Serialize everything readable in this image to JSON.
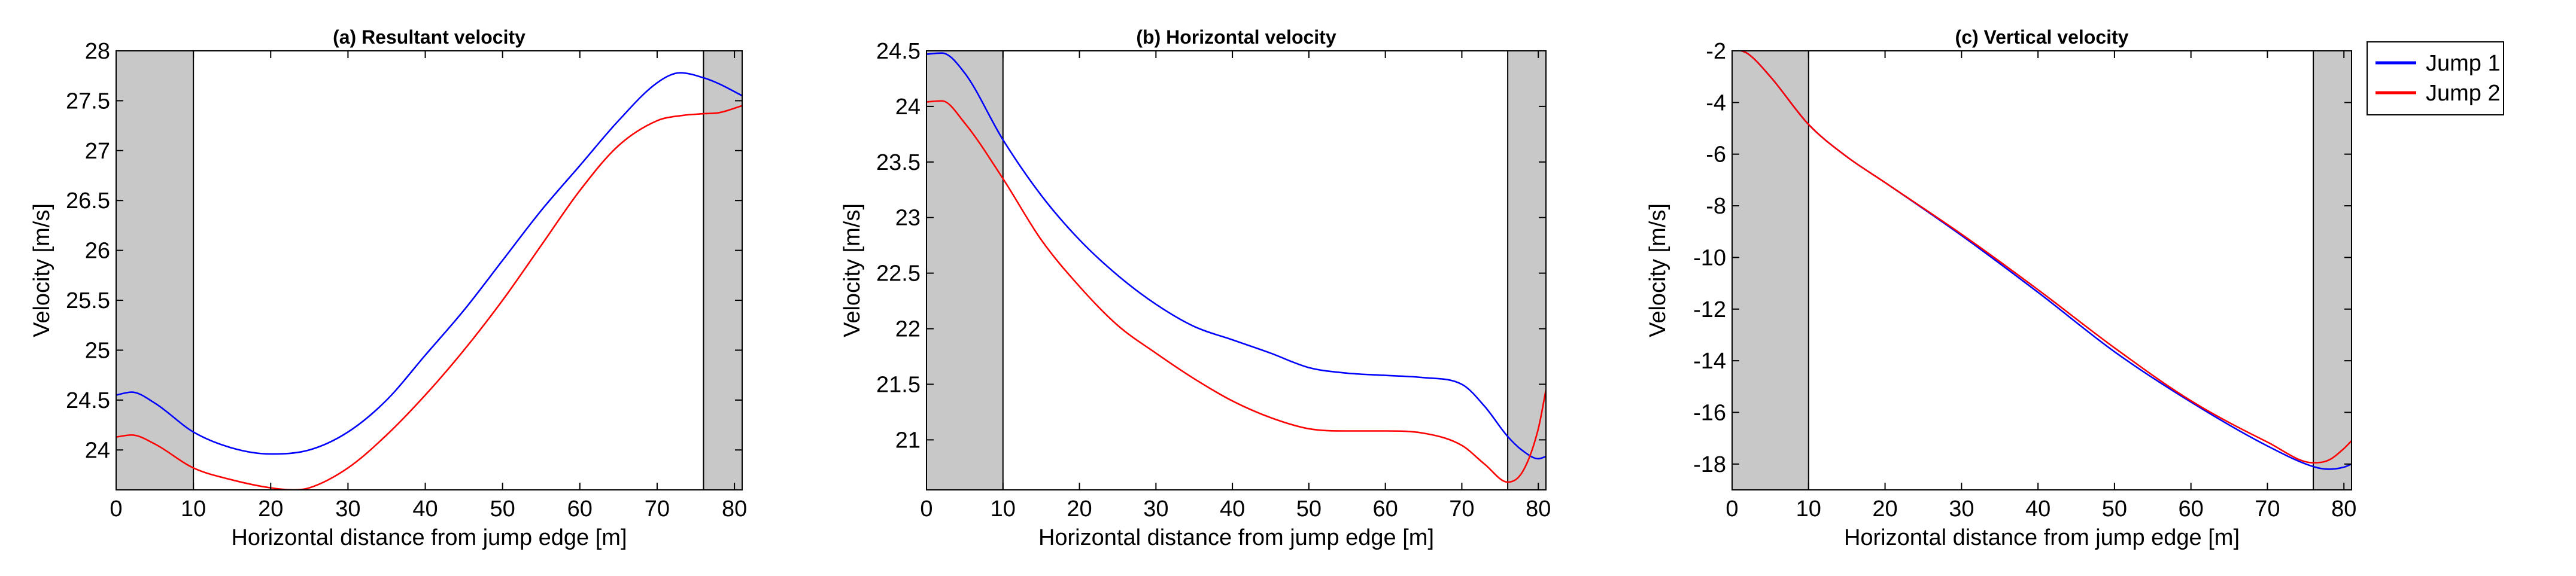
{
  "legend": {
    "entries": [
      {
        "label": "Jump 1",
        "color": "#0000ff"
      },
      {
        "label": "Jump 2",
        "color": "#ff0000"
      }
    ]
  },
  "shading": {
    "color": "#c8c8c8",
    "regions": [
      [
        0,
        10
      ],
      [
        76,
        81
      ]
    ]
  },
  "chart_data": [
    {
      "type": "line",
      "title": "(a) Resultant velocity",
      "xlabel": "Horizontal distance from jump edge [m]",
      "ylabel": "Velocity [m/s]",
      "xlim": [
        0,
        81
      ],
      "ylim": [
        23.6,
        28
      ],
      "xticks": [
        0,
        10,
        20,
        30,
        40,
        50,
        60,
        70,
        80
      ],
      "yticks": [
        24,
        24.5,
        25,
        25.5,
        26,
        26.5,
        27,
        27.5,
        28
      ],
      "series": [
        {
          "name": "Jump 1",
          "color": "#0000ff",
          "x": [
            0,
            2,
            5,
            10,
            15,
            20,
            25,
            30,
            35,
            40,
            45,
            50,
            55,
            60,
            65,
            70,
            73,
            76,
            78,
            81
          ],
          "y": [
            24.55,
            24.58,
            24.47,
            24.18,
            24.02,
            23.96,
            24.0,
            24.18,
            24.5,
            24.95,
            25.4,
            25.9,
            26.4,
            26.85,
            27.3,
            27.68,
            27.78,
            27.73,
            27.67,
            27.55
          ]
        },
        {
          "name": "Jump 2",
          "color": "#ff0000",
          "x": [
            0,
            2,
            5,
            10,
            15,
            20,
            23,
            25,
            30,
            35,
            40,
            45,
            50,
            55,
            60,
            65,
            70,
            73,
            76,
            78,
            81
          ],
          "y": [
            24.13,
            24.15,
            24.06,
            23.82,
            23.7,
            23.62,
            23.6,
            23.62,
            23.82,
            24.15,
            24.55,
            25.0,
            25.5,
            26.05,
            26.6,
            27.05,
            27.3,
            27.35,
            27.37,
            27.38,
            27.45
          ]
        }
      ]
    },
    {
      "type": "line",
      "title": "(b) Horizontal velocity",
      "xlabel": "Horizontal distance from jump edge [m]",
      "ylabel": "Velocity [m/s]",
      "xlim": [
        0,
        81
      ],
      "ylim": [
        20.55,
        24.5
      ],
      "xticks": [
        0,
        10,
        20,
        30,
        40,
        50,
        60,
        70,
        80
      ],
      "yticks": [
        21,
        21.5,
        22,
        22.5,
        23,
        23.5,
        24,
        24.5
      ],
      "series": [
        {
          "name": "Jump 1",
          "color": "#0000ff",
          "x": [
            0,
            2,
            5,
            10,
            15,
            20,
            25,
            30,
            35,
            40,
            45,
            50,
            55,
            60,
            65,
            70,
            73,
            76,
            78,
            80,
            81
          ],
          "y": [
            24.47,
            24.48,
            24.3,
            23.7,
            23.2,
            22.8,
            22.48,
            22.22,
            22.02,
            21.9,
            21.78,
            21.65,
            21.6,
            21.58,
            21.56,
            21.5,
            21.3,
            21.03,
            20.9,
            20.83,
            20.85
          ]
        },
        {
          "name": "Jump 2",
          "color": "#ff0000",
          "x": [
            0,
            2,
            5,
            10,
            15,
            20,
            25,
            30,
            35,
            40,
            45,
            50,
            55,
            60,
            65,
            70,
            73,
            76,
            78,
            80,
            81
          ],
          "y": [
            24.04,
            24.05,
            23.85,
            23.35,
            22.8,
            22.38,
            22.03,
            21.78,
            21.55,
            21.35,
            21.2,
            21.1,
            21.08,
            21.08,
            21.06,
            20.95,
            20.78,
            20.62,
            20.72,
            21.1,
            21.45
          ]
        }
      ]
    },
    {
      "type": "line",
      "title": "(c) Vertical velocity",
      "xlabel": "Horizontal distance from jump edge [m]",
      "ylabel": "Velocity [m/s]",
      "xlim": [
        0,
        81
      ],
      "ylim": [
        -19,
        -2
      ],
      "xticks": [
        0,
        10,
        20,
        30,
        40,
        50,
        60,
        70,
        80
      ],
      "yticks": [
        -2,
        -4,
        -6,
        -8,
        -10,
        -12,
        -14,
        -16,
        -18
      ],
      "series": [
        {
          "name": "Jump 1",
          "color": "#0000ff",
          "x": [
            0,
            2,
            5,
            10,
            15,
            20,
            30,
            40,
            50,
            60,
            70,
            76,
            78,
            80,
            81
          ],
          "y": [
            -1.92,
            -2.1,
            -3.0,
            -4.85,
            -6.1,
            -7.1,
            -9.15,
            -11.35,
            -13.65,
            -15.6,
            -17.3,
            -18.1,
            -18.2,
            -18.12,
            -18.0
          ]
        },
        {
          "name": "Jump 2",
          "color": "#ff0000",
          "x": [
            0,
            2,
            5,
            10,
            15,
            20,
            30,
            40,
            50,
            60,
            70,
            76,
            78,
            80,
            81
          ],
          "y": [
            -1.92,
            -2.1,
            -3.0,
            -4.85,
            -6.1,
            -7.1,
            -9.1,
            -11.25,
            -13.5,
            -15.55,
            -17.15,
            -17.95,
            -17.85,
            -17.4,
            -17.1
          ]
        }
      ]
    }
  ]
}
